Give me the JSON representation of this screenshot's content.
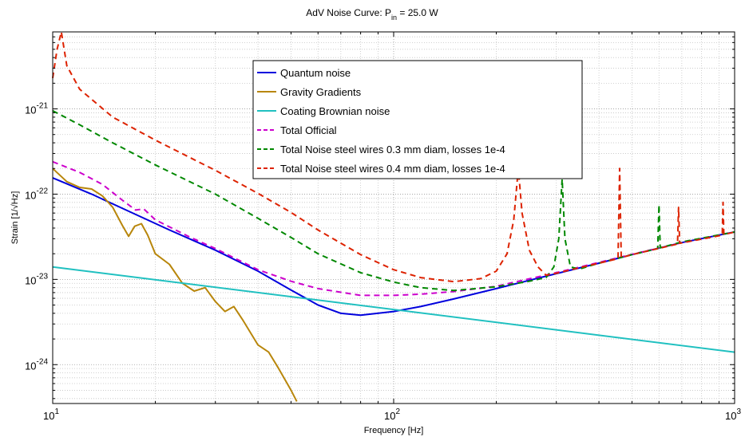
{
  "chart_data": {
    "type": "line",
    "title": {
      "prefix": "AdV Noise Curve: P",
      "sub": "in",
      "suffix": " = 25.0 W"
    },
    "xlabel": "Frequency [Hz]",
    "ylabel": "Strain [1/√Hz]",
    "xscale": "log",
    "yscale": "log",
    "xlim": [
      10,
      1000
    ],
    "ylim": [
      3.5e-25,
      8e-21
    ],
    "grid": true,
    "legend_position": "top-center",
    "x_ticks": [
      {
        "value": 10,
        "base": "10",
        "exp": "1"
      },
      {
        "value": 100,
        "base": "10",
        "exp": "2"
      },
      {
        "value": 1000,
        "base": "10",
        "exp": "3"
      }
    ],
    "y_ticks": [
      {
        "value": 1e-24,
        "base": "10",
        "exp": "-24"
      },
      {
        "value": 1e-23,
        "base": "10",
        "exp": "-23"
      },
      {
        "value": 1e-22,
        "base": "10",
        "exp": "-22"
      },
      {
        "value": 1e-21,
        "base": "10",
        "exp": "-21"
      }
    ],
    "series": [
      {
        "name": "Quantum noise",
        "color": "#0000dd",
        "dash": "none",
        "points": [
          [
            10,
            1.55e-22
          ],
          [
            13,
            1e-22
          ],
          [
            17,
            6.1e-23
          ],
          [
            22,
            3.8e-23
          ],
          [
            30,
            2.2e-23
          ],
          [
            40,
            1.25e-23
          ],
          [
            50,
            7.5e-24
          ],
          [
            60,
            5e-24
          ],
          [
            70,
            4e-24
          ],
          [
            80,
            3.8e-24
          ],
          [
            100,
            4.2e-24
          ],
          [
            120,
            4.8e-24
          ],
          [
            150,
            5.9e-24
          ],
          [
            200,
            7.8e-24
          ],
          [
            300,
            1.17e-23
          ],
          [
            400,
            1.55e-23
          ],
          [
            500,
            1.95e-23
          ],
          [
            700,
            2.7e-23
          ],
          [
            1000,
            3.6e-23
          ]
        ]
      },
      {
        "name": "Gravity Gradients",
        "color": "#b8860b",
        "dash": "none",
        "points": [
          [
            10,
            2e-22
          ],
          [
            11,
            1.4e-22
          ],
          [
            12,
            1.2e-22
          ],
          [
            13,
            1.15e-22
          ],
          [
            14,
            9.5e-23
          ],
          [
            15,
            7e-23
          ],
          [
            16,
            4.3e-23
          ],
          [
            16.7,
            3.2e-23
          ],
          [
            17.4,
            4.2e-23
          ],
          [
            18.2,
            4.5e-23
          ],
          [
            19,
            3.3e-23
          ],
          [
            20,
            2e-23
          ],
          [
            22,
            1.5e-23
          ],
          [
            24,
            9e-24
          ],
          [
            26,
            7.3e-24
          ],
          [
            28,
            8e-24
          ],
          [
            30,
            5.5e-24
          ],
          [
            32,
            4.2e-24
          ],
          [
            34,
            4.8e-24
          ],
          [
            36,
            3.4e-24
          ],
          [
            40,
            1.7e-24
          ],
          [
            43,
            1.4e-24
          ],
          [
            46,
            9e-25
          ],
          [
            50,
            5e-25
          ],
          [
            52,
            3.7e-25
          ]
        ]
      },
      {
        "name": "Coating Brownian noise",
        "color": "#20c0c0",
        "dash": "none",
        "points": [
          [
            10,
            1.4e-23
          ],
          [
            1000,
            1.4e-24
          ]
        ]
      },
      {
        "name": "Total Official",
        "color": "#cc00cc",
        "dash": "7,5",
        "points": [
          [
            10,
            2.4e-22
          ],
          [
            12,
            1.8e-22
          ],
          [
            14,
            1.3e-22
          ],
          [
            16,
            8.5e-23
          ],
          [
            17.5,
            6.5e-23
          ],
          [
            18.5,
            6.7e-23
          ],
          [
            20,
            5e-23
          ],
          [
            25,
            3.2e-23
          ],
          [
            30,
            2.3e-23
          ],
          [
            40,
            1.3e-23
          ],
          [
            50,
            9.5e-24
          ],
          [
            60,
            7.8e-24
          ],
          [
            80,
            6.5e-24
          ],
          [
            100,
            6.5e-24
          ],
          [
            120,
            6.7e-24
          ],
          [
            150,
            7.2e-24
          ],
          [
            200,
            8.3e-24
          ],
          [
            300,
            1.2e-23
          ],
          [
            400,
            1.58e-23
          ],
          [
            500,
            1.97e-23
          ],
          [
            700,
            2.7e-23
          ],
          [
            1000,
            3.6e-23
          ]
        ]
      },
      {
        "name": "Total Noise steel wires 0.3 mm diam, losses 1e-4",
        "color": "#008800",
        "dash": "7,5",
        "points": [
          [
            10,
            9.5e-22
          ],
          [
            12,
            6.5e-22
          ],
          [
            15,
            4e-22
          ],
          [
            20,
            2.2e-22
          ],
          [
            30,
            1e-22
          ],
          [
            40,
            5.2e-23
          ],
          [
            50,
            3.1e-23
          ],
          [
            60,
            2e-23
          ],
          [
            80,
            1.2e-23
          ],
          [
            100,
            9.3e-24
          ],
          [
            120,
            8e-24
          ],
          [
            150,
            7.4e-24
          ],
          [
            200,
            8.2e-24
          ],
          [
            250,
            9.5e-24
          ],
          [
            280,
            1.05e-23
          ],
          [
            295,
            1.4e-23
          ],
          [
            305,
            3e-23
          ],
          [
            312,
            1.5e-22
          ],
          [
            318,
            3e-23
          ],
          [
            330,
            1.4e-23
          ],
          [
            350,
            1.32e-23
          ],
          [
            400,
            1.55e-23
          ],
          [
            500,
            1.95e-23
          ],
          [
            595,
            2.3e-23
          ],
          [
            600,
            7.5e-23
          ],
          [
            605,
            2.35e-23
          ],
          [
            700,
            2.75e-23
          ],
          [
            1000,
            3.6e-23
          ]
        ]
      },
      {
        "name": "Total Noise steel wires 0.4 mm diam, losses 1e-4",
        "color": "#dd2200",
        "dash": "7,5",
        "points": [
          [
            10,
            2.3e-21
          ],
          [
            10.3,
            5e-21
          ],
          [
            10.6,
            8e-21
          ],
          [
            11,
            3.2e-21
          ],
          [
            12,
            1.7e-21
          ],
          [
            15,
            8e-22
          ],
          [
            20,
            4.3e-22
          ],
          [
            30,
            1.9e-22
          ],
          [
            40,
            1.02e-22
          ],
          [
            50,
            6.1e-23
          ],
          [
            60,
            3.8e-23
          ],
          [
            80,
            1.95e-23
          ],
          [
            100,
            1.3e-23
          ],
          [
            120,
            1.05e-23
          ],
          [
            150,
            9.4e-24
          ],
          [
            180,
            1.02e-23
          ],
          [
            200,
            1.25e-23
          ],
          [
            215,
            2e-23
          ],
          [
            225,
            5e-23
          ],
          [
            232,
            2e-22
          ],
          [
            238,
            6e-23
          ],
          [
            250,
            2.2e-23
          ],
          [
            265,
            1.4e-23
          ],
          [
            280,
            1.12e-23
          ],
          [
            300,
            1.18e-23
          ],
          [
            400,
            1.55e-23
          ],
          [
            455,
            1.75e-23
          ],
          [
            460,
            2e-22
          ],
          [
            465,
            1.8e-23
          ],
          [
            500,
            1.95e-23
          ],
          [
            680,
            2.6e-23
          ],
          [
            685,
            7e-23
          ],
          [
            690,
            2.65e-23
          ],
          [
            920,
            3.3e-23
          ],
          [
            925,
            8e-23
          ],
          [
            930,
            3.35e-23
          ],
          [
            1000,
            3.6e-23
          ]
        ]
      }
    ]
  }
}
